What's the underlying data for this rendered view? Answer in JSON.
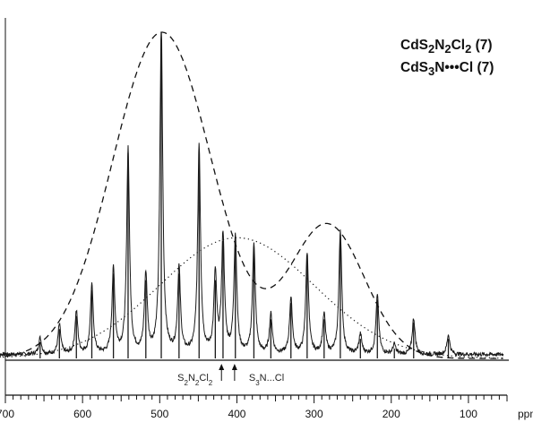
{
  "chart_data": {
    "type": "line",
    "title": "",
    "legend": [
      "CdS2N2Cl2 (7)",
      "CdS3N•••Cl (7)"
    ],
    "legend_html": [
      "CdS<sub>2</sub>N<sub>2</sub>Cl<sub>2</sub> (7)",
      "CdS<sub>3</sub>N•••Cl (7)"
    ],
    "legend_placement": "top-right",
    "x_unit": "ppm",
    "xlim": [
      700,
      50
    ],
    "x_ticks": [
      700,
      600,
      500,
      400,
      300,
      200,
      100
    ],
    "ylim": [
      0,
      1
    ],
    "grid": false,
    "site_markers": [
      {
        "label": "S2N2Cl2",
        "label_html": "S<tspan baseline-shift='sub' font-size='8'>2</tspan>N<tspan baseline-shift='sub' font-size='8'>2</tspan>Cl<tspan baseline-shift='sub' font-size='8'>2</tspan>",
        "x": 420
      },
      {
        "label": "S3N...Cl",
        "label_html": "S<tspan baseline-shift='sub' font-size='8'>3</tspan>N...Cl",
        "x": 403
      }
    ],
    "spectrum_peaks": [
      {
        "x": 655,
        "y": 0.05
      },
      {
        "x": 630,
        "y": 0.09
      },
      {
        "x": 608,
        "y": 0.13
      },
      {
        "x": 588,
        "y": 0.21
      },
      {
        "x": 560,
        "y": 0.26
      },
      {
        "x": 541,
        "y": 0.63
      },
      {
        "x": 518,
        "y": 0.24
      },
      {
        "x": 498,
        "y": 1.0
      },
      {
        "x": 475,
        "y": 0.26
      },
      {
        "x": 449,
        "y": 0.64
      },
      {
        "x": 428,
        "y": 0.24
      },
      {
        "x": 418,
        "y": 0.36
      },
      {
        "x": 402,
        "y": 0.36
      },
      {
        "x": 378,
        "y": 0.34
      },
      {
        "x": 356,
        "y": 0.12
      },
      {
        "x": 330,
        "y": 0.17
      },
      {
        "x": 309,
        "y": 0.31
      },
      {
        "x": 287,
        "y": 0.12
      },
      {
        "x": 266,
        "y": 0.38
      },
      {
        "x": 240,
        "y": 0.06
      },
      {
        "x": 218,
        "y": 0.18
      },
      {
        "x": 196,
        "y": 0.03
      },
      {
        "x": 171,
        "y": 0.11
      },
      {
        "x": 126,
        "y": 0.06
      }
    ],
    "envelopes": [
      {
        "style": "dashed",
        "components": [
          {
            "center": 497,
            "height": 1.0,
            "width": 64
          },
          {
            "center": 283,
            "height": 0.41,
            "width": 48
          }
        ]
      },
      {
        "style": "dotted",
        "components": [
          {
            "center": 400,
            "height": 0.37,
            "width": 100
          }
        ]
      }
    ]
  }
}
